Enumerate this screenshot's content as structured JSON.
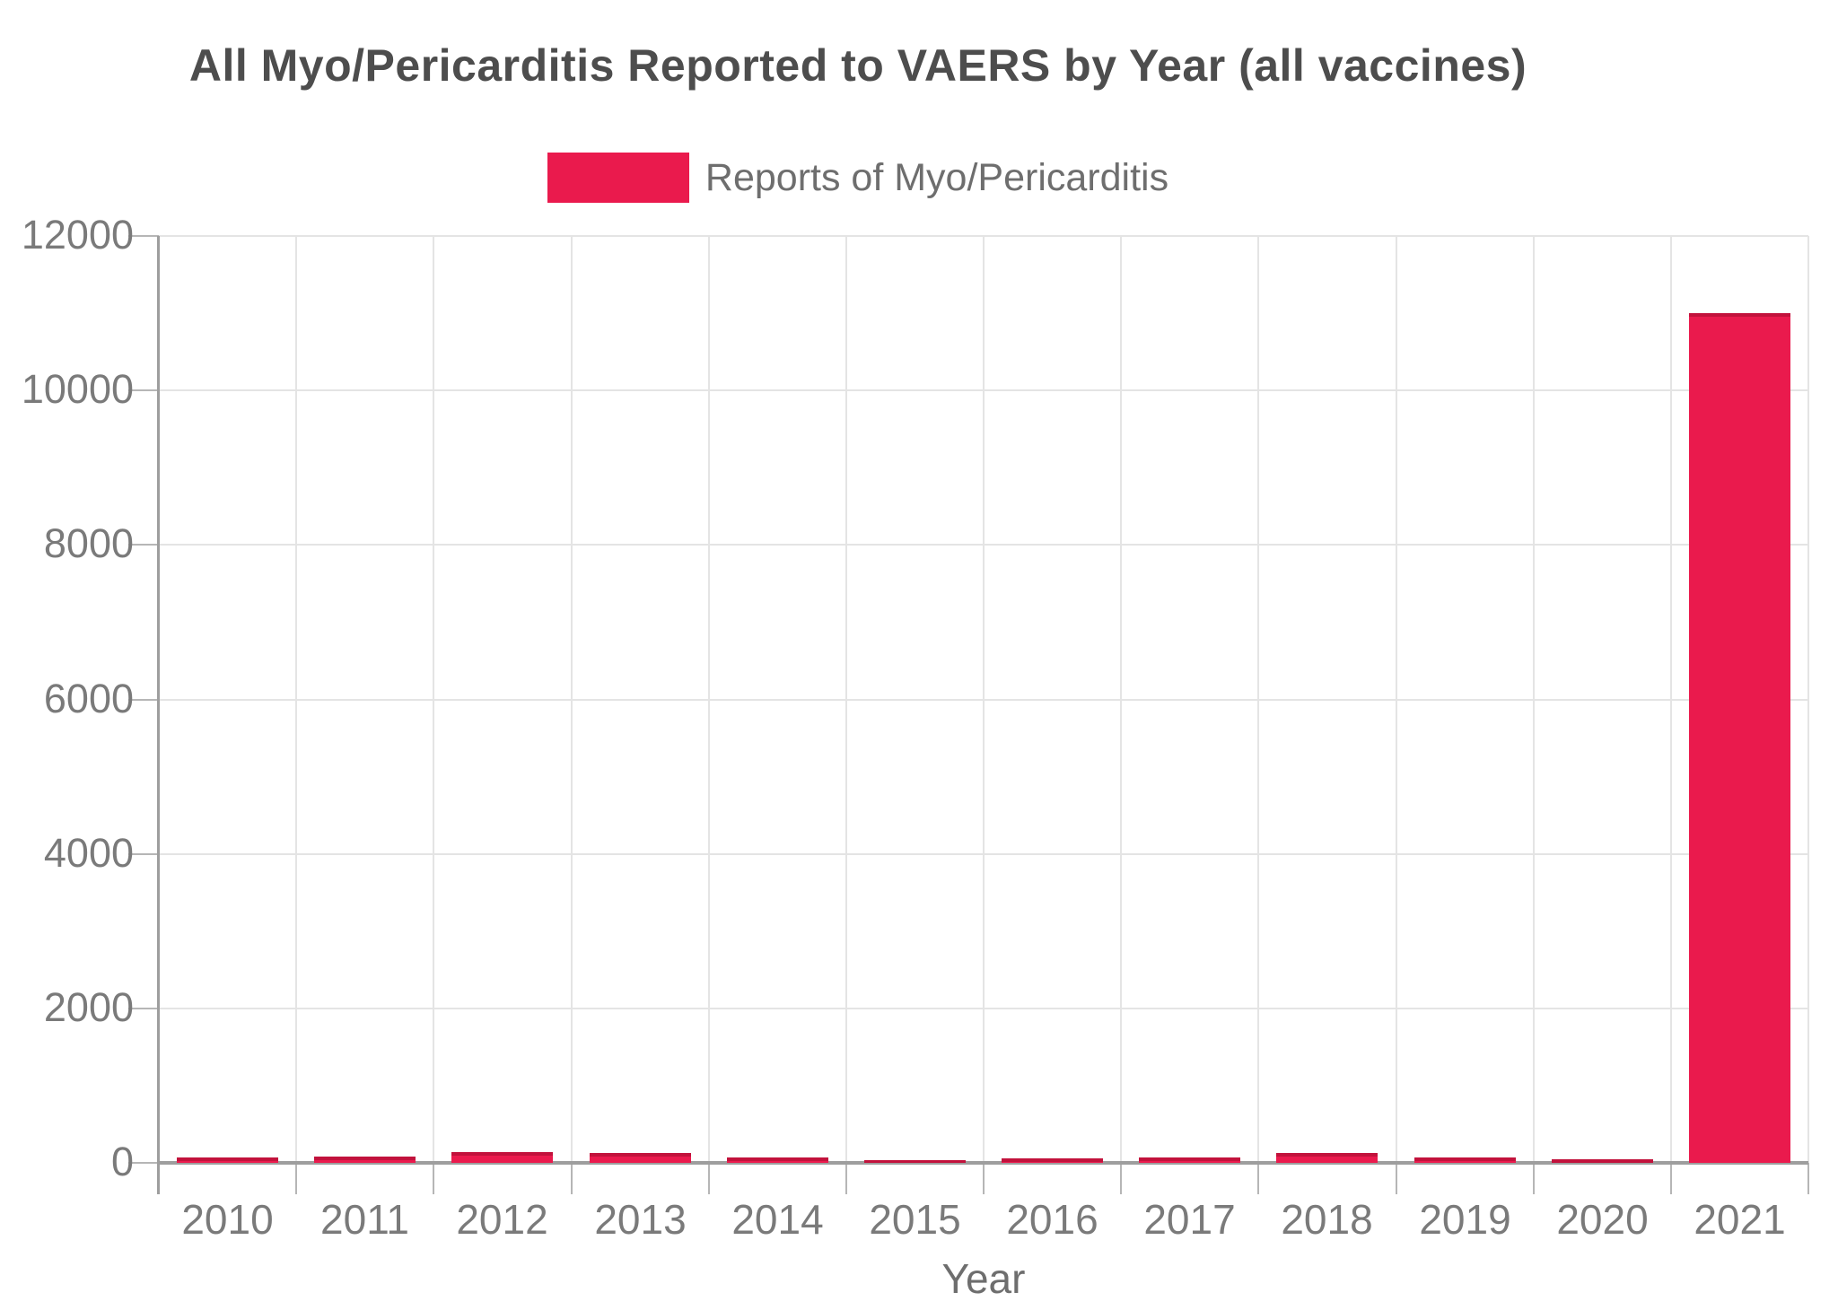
{
  "chart_data": {
    "type": "bar",
    "title": "All Myo/Pericarditis Reported to VAERS by Year (all vaccines)",
    "legend": {
      "label": "Reports of Myo/Pericarditis",
      "position": "top-center"
    },
    "categories": [
      "2010",
      "2011",
      "2012",
      "2013",
      "2014",
      "2015",
      "2016",
      "2017",
      "2018",
      "2019",
      "2020",
      "2021"
    ],
    "series": [
      {
        "name": "Reports of Myo/Pericarditis",
        "values": [
          70,
          80,
          140,
          130,
          65,
          40,
          60,
          70,
          130,
          65,
          50,
          11000
        ]
      }
    ],
    "xlabel": "Year",
    "ylabel": "",
    "ylim": [
      0,
      12000
    ],
    "yticks": [
      0,
      2000,
      4000,
      6000,
      8000,
      10000,
      12000
    ],
    "grid": true,
    "legend_visible": true
  },
  "colors": {
    "bar_fill": "#EA1A4D",
    "bar_edge": "#A00C30",
    "title_text": "#4d4d4d",
    "tick_text": "#7a7a7a",
    "legend_text": "#6e6e6e",
    "gridline": "#e4e4e4",
    "axis_line": "#9e9e9e",
    "background": "#ffffff"
  }
}
